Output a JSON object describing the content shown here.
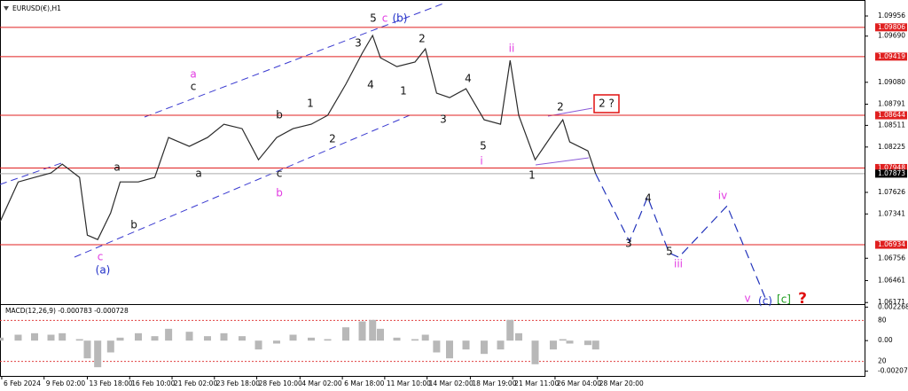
{
  "chart_data": {
    "type": "line",
    "title": "EURUSD(€),H1",
    "xlim": [
      0,
      100
    ],
    "ylim": [
      1.0615,
      1.10167
    ],
    "xticks": [
      {
        "value": 0.2,
        "label": "6 Feb 2024"
      },
      {
        "value": 5.1,
        "label": "9 Feb 02:00"
      },
      {
        "value": 10.1,
        "label": "13 Feb 18:00"
      },
      {
        "value": 15.0,
        "label": "16 Feb 10:00"
      },
      {
        "value": 19.9,
        "label": "21 Feb 02:00"
      },
      {
        "value": 24.8,
        "label": "23 Feb 18:00"
      },
      {
        "value": 29.7,
        "label": "28 Feb 10:00"
      },
      {
        "value": 34.7,
        "label": "4 Mar 02:00"
      },
      {
        "value": 39.6,
        "label": "6 Mar 18:00"
      },
      {
        "value": 44.5,
        "label": "11 Mar 10:00"
      },
      {
        "value": 49.4,
        "label": "14 Mar 02:00"
      },
      {
        "value": 54.4,
        "label": "18 Mar 19:00"
      },
      {
        "value": 59.3,
        "label": "21 Mar 11:00"
      },
      {
        "value": 64.2,
        "label": "26 Mar 04:00"
      },
      {
        "value": 69.1,
        "label": "28 Mar 20:00"
      }
    ],
    "yticks": [
      1.09956,
      {
        "value": 1.0969,
        "label": "1.09690"
      },
      {
        "value": 1.0908,
        "label": "1.09080"
      },
      1.08791,
      1.08511,
      1.08225,
      1.07626,
      1.07341,
      1.06756,
      1.06461,
      1.06171
    ],
    "levels": [
      1.09806,
      1.09419,
      1.08644,
      1.07948,
      1.06934
    ],
    "level_color": "#e02020",
    "current_price": 1.07873,
    "price": {
      "color": "#2b2b2b",
      "x": [
        0,
        2.1,
        4,
        5.9,
        7.2,
        9.2,
        10.1,
        11.3,
        12.8,
        13.9,
        16,
        17.9,
        19.5,
        21.9,
        24,
        25.9,
        28,
        29.9,
        32,
        33.9,
        36,
        37.9,
        40,
        41.9,
        43.1,
        44,
        45.9,
        48,
        49.2,
        50.5,
        52,
        53.9,
        56,
        57.9,
        59,
        60,
        61.9,
        64,
        65.1,
        65.9,
        68,
        68.9
      ],
      "values": [
        1.07237,
        1.07764,
        1.07823,
        1.07882,
        1.07999,
        1.07823,
        1.07061,
        1.07003,
        1.07354,
        1.07764,
        1.07764,
        1.07823,
        1.0835,
        1.08233,
        1.0835,
        1.08526,
        1.08468,
        1.08057,
        1.0835,
        1.08468,
        1.08526,
        1.08643,
        1.09054,
        1.09464,
        1.09699,
        1.09405,
        1.09288,
        1.09347,
        1.09522,
        1.08936,
        1.08878,
        1.08995,
        1.08585,
        1.08526,
        1.0937,
        1.08643,
        1.08057,
        1.08409,
        1.08585,
        1.08292,
        1.08174,
        1.0787
      ]
    },
    "projection": {
      "color": "#2233bb",
      "x": [
        68.9,
        72.8,
        74.9,
        77.4,
        78.5,
        84.1,
        88.7
      ],
      "values": [
        1.0787,
        1.06979,
        1.07565,
        1.06827,
        1.06768,
        1.07448,
        1.06182
      ]
    },
    "annotations": [
      "5",
      "c",
      "(b)",
      "3",
      "2",
      "ii",
      "4",
      "1",
      "4",
      "3",
      "5",
      "i",
      "2",
      "2 ?",
      "1",
      "3",
      "4",
      "5",
      "iii",
      "iv",
      "v",
      "(c)",
      "[c]",
      "?",
      "a",
      "c",
      "b",
      "1",
      "2",
      "c",
      "b",
      "a",
      "a",
      "b",
      "c",
      "(a)"
    ],
    "macd": {
      "label": "MACD(12,26,9) -0.000783 -0.000728",
      "color": "#b8b8b8",
      "ylim": [
        -0.00215,
        0.00235
      ],
      "yticks": [
        0.002268,
        {
          "value": 0,
          "label": "0.00"
        },
        -0.002071
      ],
      "x": [
        0,
        2.1,
        4,
        5.9,
        7.2,
        9.2,
        10.1,
        11.3,
        12.8,
        13.9,
        16,
        17.9,
        19.5,
        21.9,
        24,
        25.9,
        28,
        29.9,
        32,
        33.9,
        36,
        37.9,
        40,
        41.9,
        43.1,
        44,
        45.9,
        48,
        49.2,
        50.5,
        52,
        53.9,
        56,
        57.9,
        59,
        60,
        61.9,
        64,
        65.1,
        65.9,
        68,
        68.9
      ],
      "values": [
        0.0002,
        0.0004,
        0.0005,
        0.0004,
        0.0005,
        0.0001,
        -0.0012,
        -0.0018,
        -0.0008,
        0.0002,
        0.0005,
        0.0003,
        0.0008,
        0.0006,
        0.0003,
        0.0005,
        0.0003,
        -0.0006,
        -0.0002,
        0.0004,
        0.0002,
        0.0001,
        0.0009,
        0.0013,
        0.0014,
        0.0008,
        0.0002,
        0.0001,
        0.0004,
        -0.0008,
        -0.0012,
        -0.0006,
        -0.0009,
        -0.0006,
        0.0014,
        0.0005,
        -0.0016,
        -0.0006,
        0.0001,
        -0.0002,
        -0.0003,
        -0.0006
      ]
    },
    "osc": {
      "ylim": [
        0,
        100
      ],
      "levels": [
        80,
        20
      ]
    }
  }
}
